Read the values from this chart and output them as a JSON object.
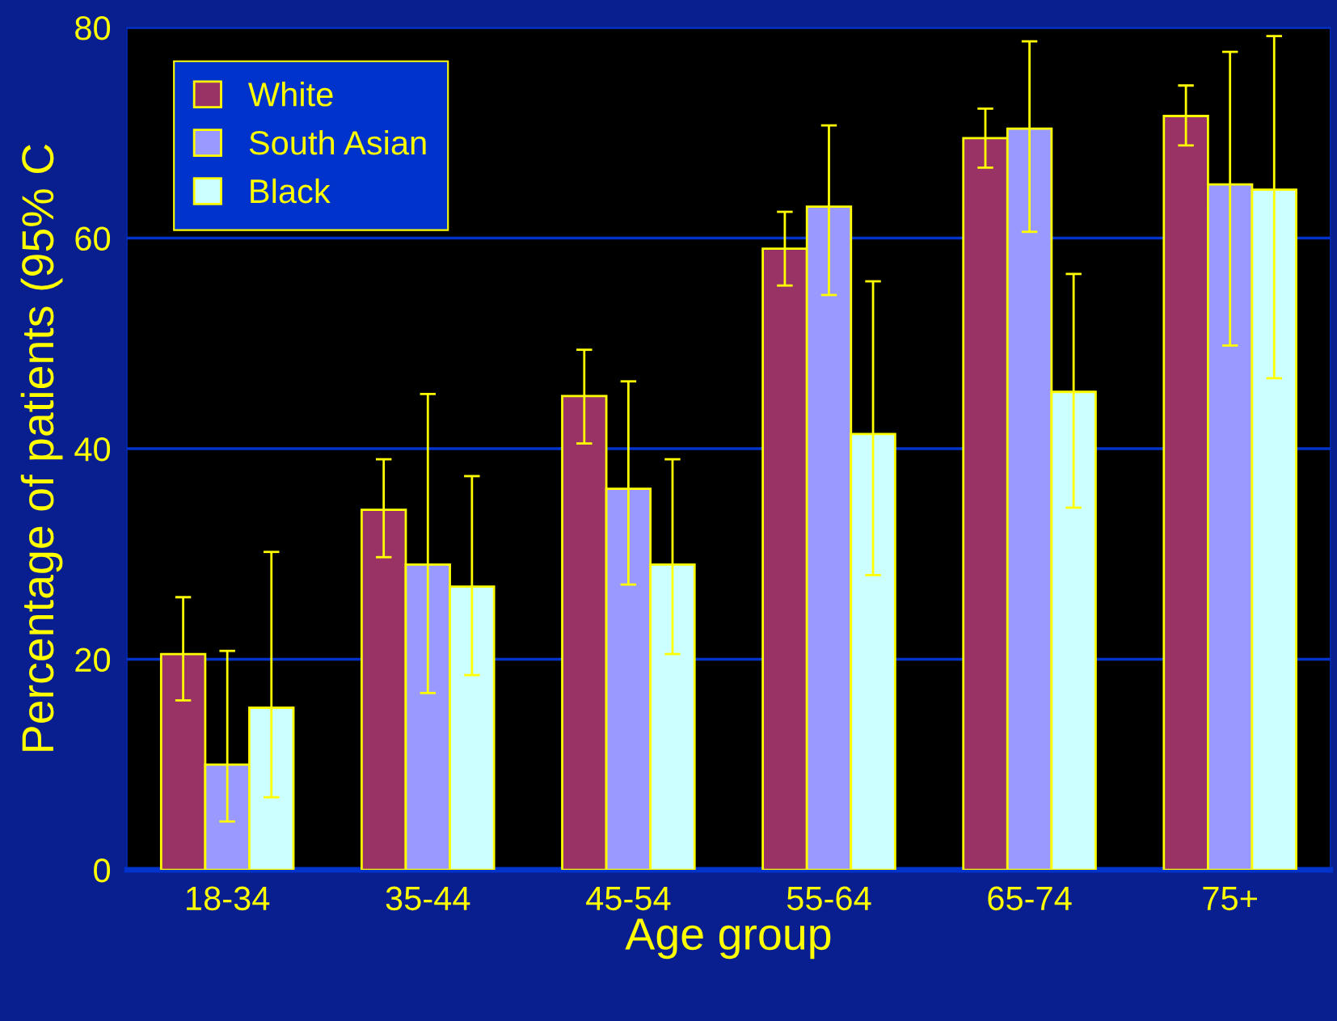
{
  "chart_data": {
    "type": "bar",
    "xlabel": "Age group",
    "ylabel": "Percentage of patients (95% C",
    "categories": [
      "18-34",
      "35-44",
      "45-54",
      "55-64",
      "65-74",
      "75+"
    ],
    "series": [
      {
        "name": "White",
        "color": "#993366",
        "values": [
          20.5,
          34.2,
          45.0,
          59.0,
          69.5,
          71.6
        ],
        "errors": [
          [
            16.1,
            25.9
          ],
          [
            29.7,
            39.0
          ],
          [
            40.5,
            49.4
          ],
          [
            55.5,
            62.5
          ],
          [
            66.7,
            72.3
          ],
          [
            68.8,
            74.5
          ]
        ]
      },
      {
        "name": "South Asian",
        "color": "#9999ff",
        "values": [
          10.0,
          29.0,
          36.2,
          63.0,
          70.4,
          65.1
        ],
        "errors": [
          [
            4.6,
            20.8
          ],
          [
            16.8,
            45.2
          ],
          [
            27.1,
            46.4
          ],
          [
            54.6,
            70.7
          ],
          [
            60.6,
            78.7
          ],
          [
            49.8,
            77.7
          ]
        ]
      },
      {
        "name": "Black",
        "color": "#ccffff",
        "values": [
          15.4,
          26.9,
          29.0,
          41.4,
          45.4,
          64.6
        ],
        "errors": [
          [
            6.9,
            30.2
          ],
          [
            18.5,
            37.4
          ],
          [
            20.5,
            39.0
          ],
          [
            28.0,
            55.9
          ],
          [
            34.4,
            56.6
          ],
          [
            46.7,
            79.2
          ]
        ]
      }
    ],
    "ylim": [
      0,
      80
    ],
    "yticks": [
      0,
      20,
      40,
      60,
      80
    ],
    "grid": "y",
    "legend": "top left"
  }
}
